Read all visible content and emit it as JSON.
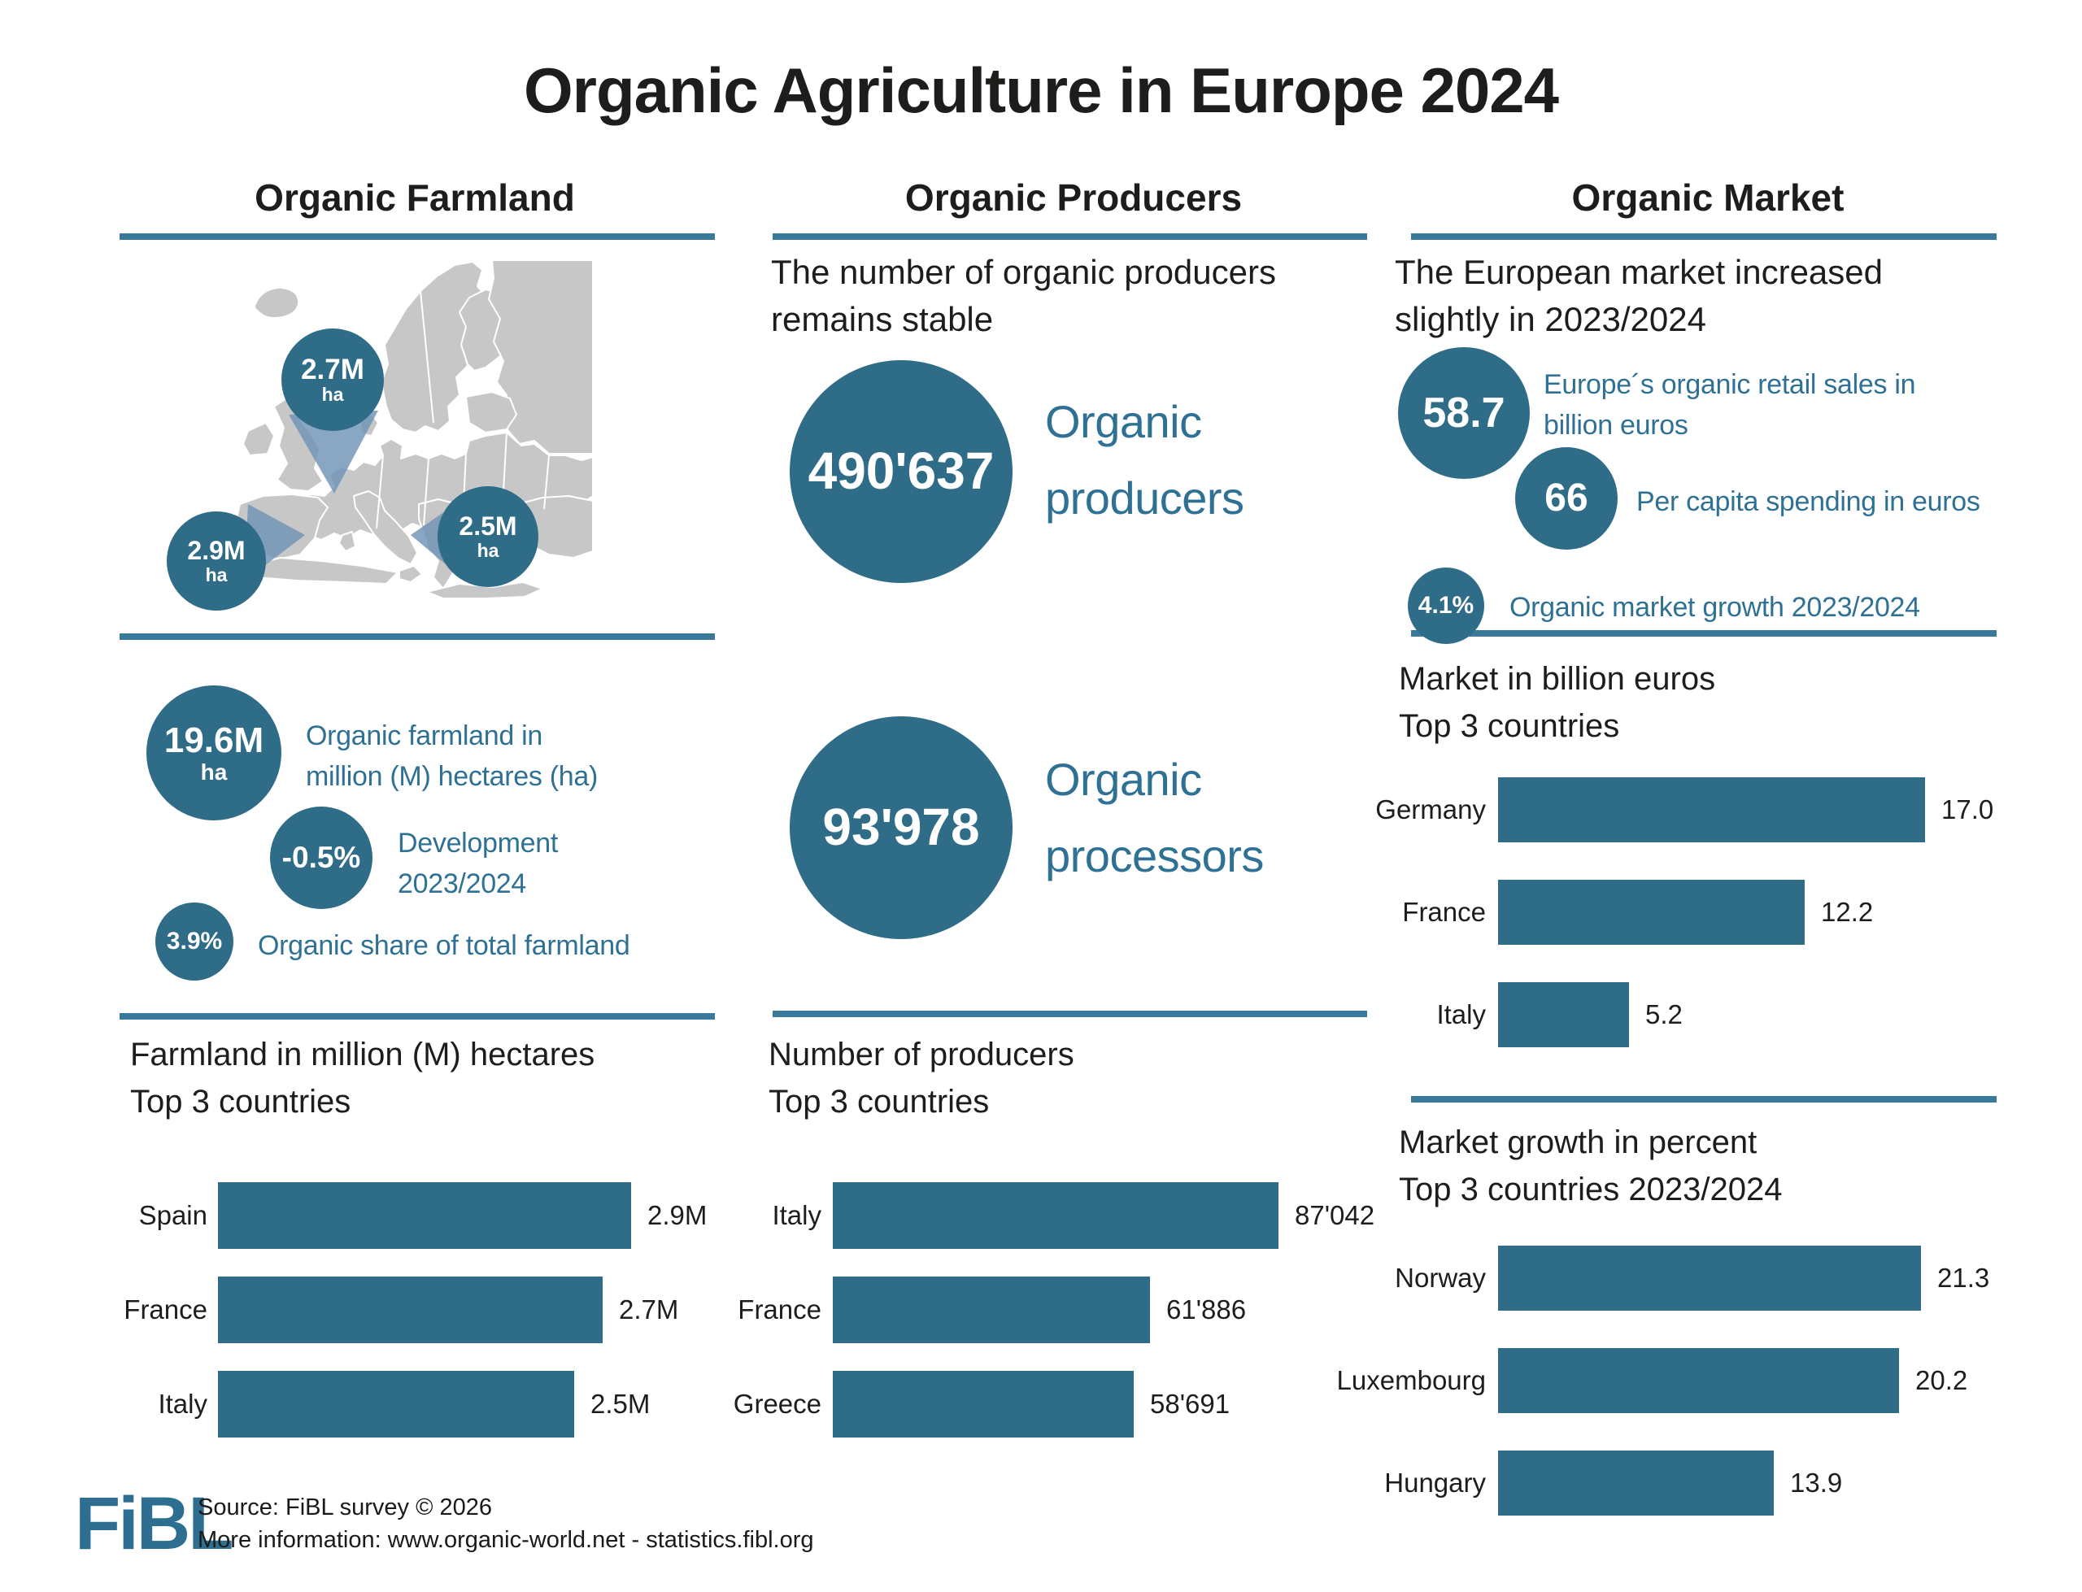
{
  "page": {
    "title": "Organic Agriculture in Europe 2024"
  },
  "colors": {
    "teal_shape": "#2e6c87",
    "teal_line": "#38799c",
    "teal_text": "#2f7194",
    "text_black": "#1d1d1b",
    "map_gray": "#c7c7c7",
    "pointer_blue": "#6f92b6",
    "white": "#ffffff"
  },
  "farmland": {
    "header": "Organic Farmland",
    "map_bubbles": [
      {
        "value": "2.7M",
        "unit": "ha",
        "points_to": "France"
      },
      {
        "value": "2.9M",
        "unit": "ha",
        "points_to": "Spain"
      },
      {
        "value": "2.5M",
        "unit": "ha",
        "points_to": "Italy"
      }
    ],
    "stat1": {
      "value": "19.6M",
      "unit": "ha",
      "label1": "Organic farmland in",
      "label2": "million (M) hectares (ha)"
    },
    "stat2": {
      "value": "-0.5%",
      "label1": "Development",
      "label2": "2023/2024"
    },
    "stat3": {
      "value": "3.9%",
      "label": "Organic share of total farmland"
    }
  },
  "producers": {
    "header": "Organic Producers",
    "intro1": "The number of organic producers",
    "intro2": "remains stable",
    "stat1": {
      "value": "490'637",
      "label1": "Organic",
      "label2": "producers"
    },
    "stat2": {
      "value": "93'978",
      "label1": "Organic",
      "label2": "processors"
    }
  },
  "market": {
    "header": "Organic Market",
    "intro1": "The European market increased",
    "intro2": "slightly in 2023/2024",
    "stat1": {
      "value": "58.7",
      "label1": "Europe´s organic retail sales in",
      "label2": "billion euros"
    },
    "stat2": {
      "value": "66",
      "label": "Per capita spending in euros"
    },
    "stat3": {
      "value": "4.1%",
      "label": "Organic market growth 2023/2024"
    }
  },
  "footer": {
    "logo": "FiBL",
    "source1": "Source: FiBL survey © 2026",
    "source2": "More information: www.organic-world.net - statistics.fibl.org"
  },
  "chart_data": [
    {
      "id": "farmland-top3",
      "type": "bar",
      "orientation": "horizontal",
      "title": "Farmland in million (M) hectares",
      "subtitle": "Top 3 countries",
      "categories": [
        "Spain",
        "France",
        "Italy"
      ],
      "values": [
        2.9,
        2.7,
        2.5
      ],
      "value_labels": [
        "2.9M",
        "2.7M",
        "2.5M"
      ],
      "unit": "million hectares",
      "grid": false,
      "legend": false
    },
    {
      "id": "producers-top3",
      "type": "bar",
      "orientation": "horizontal",
      "title": "Number of producers",
      "subtitle": "Top 3 countries",
      "categories": [
        "Italy",
        "France",
        "Greece"
      ],
      "values": [
        87042,
        61886,
        58691
      ],
      "value_labels": [
        "87'042",
        "61'886",
        "58'691"
      ],
      "unit": "producers",
      "grid": false,
      "legend": false
    },
    {
      "id": "market-top3",
      "type": "bar",
      "orientation": "horizontal",
      "title": "Market in billion euros",
      "subtitle": "Top 3 countries",
      "categories": [
        "Germany",
        "France",
        "Italy"
      ],
      "values": [
        17.0,
        12.2,
        5.2
      ],
      "value_labels": [
        "17.0",
        "12.2",
        "5.2"
      ],
      "unit": "billion euros",
      "grid": false,
      "legend": false
    },
    {
      "id": "growth-top3",
      "type": "bar",
      "orientation": "horizontal",
      "title": "Market growth in percent",
      "subtitle": "Top 3 countries 2023/2024",
      "categories": [
        "Norway",
        "Luxembourg",
        "Hungary"
      ],
      "values": [
        21.3,
        20.2,
        13.9
      ],
      "value_labels": [
        "21.3",
        "20.2",
        "13.9"
      ],
      "unit": "percent",
      "grid": false,
      "legend": false
    }
  ]
}
